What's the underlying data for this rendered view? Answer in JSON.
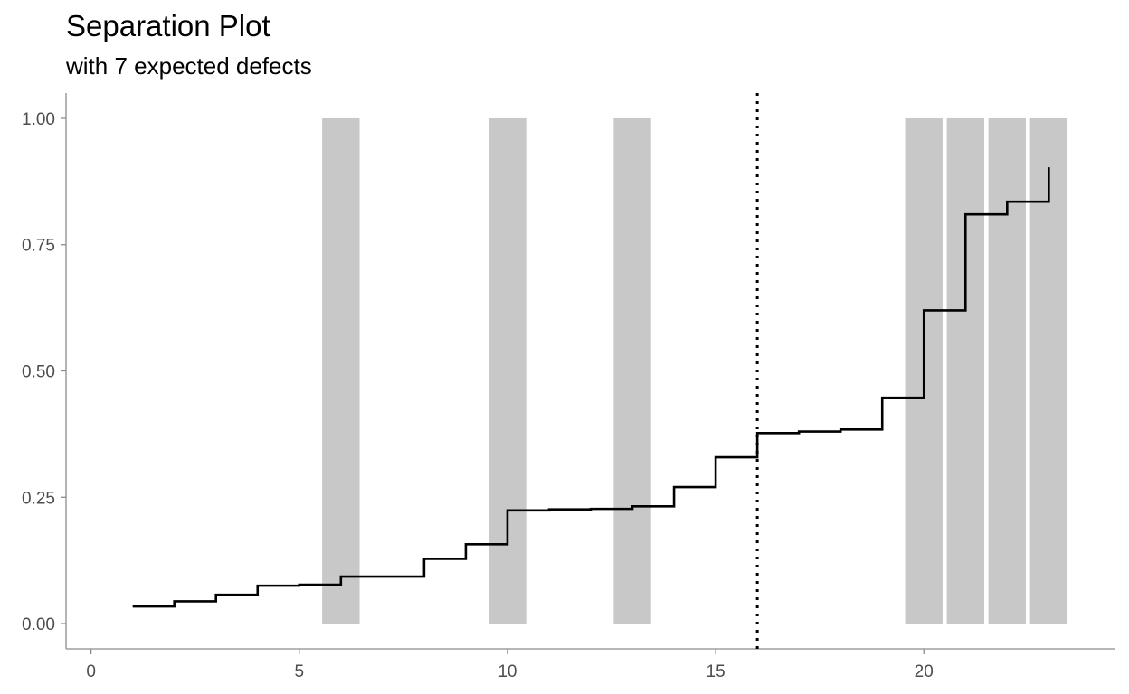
{
  "chart_data": {
    "type": "step",
    "title": "Separation Plot",
    "subtitle": "with 7 expected defects",
    "xlabel": "",
    "ylabel": "",
    "xlim": [
      -0.6,
      24.6
    ],
    "ylim": [
      -0.05,
      1.05
    ],
    "x_ticks": [
      0,
      5,
      10,
      15,
      20
    ],
    "x_tick_labels": [
      "0",
      "5",
      "10",
      "15",
      "20"
    ],
    "y_ticks": [
      0,
      0.25,
      0.5,
      0.75,
      1.0
    ],
    "y_tick_labels": [
      "0.00",
      "0.25",
      "0.50",
      "0.75",
      "1.00"
    ],
    "defect_bars": [
      6,
      10,
      13,
      20,
      21,
      22,
      23
    ],
    "defect_bar_color": "#c8c8c8",
    "expected_defects_line_x": 16,
    "step_series": {
      "x": [
        1,
        2,
        3,
        4,
        5,
        6,
        7,
        8,
        9,
        10,
        11,
        12,
        13,
        14,
        15,
        16,
        17,
        18,
        19,
        20,
        21,
        22,
        23
      ],
      "y": [
        0.034,
        0.044,
        0.057,
        0.075,
        0.077,
        0.093,
        0.093,
        0.128,
        0.157,
        0.224,
        0.226,
        0.227,
        0.232,
        0.27,
        0.329,
        0.377,
        0.38,
        0.384,
        0.447,
        0.62,
        0.81,
        0.835,
        0.835
      ],
      "final_value": 0.903
    },
    "grid": false
  }
}
